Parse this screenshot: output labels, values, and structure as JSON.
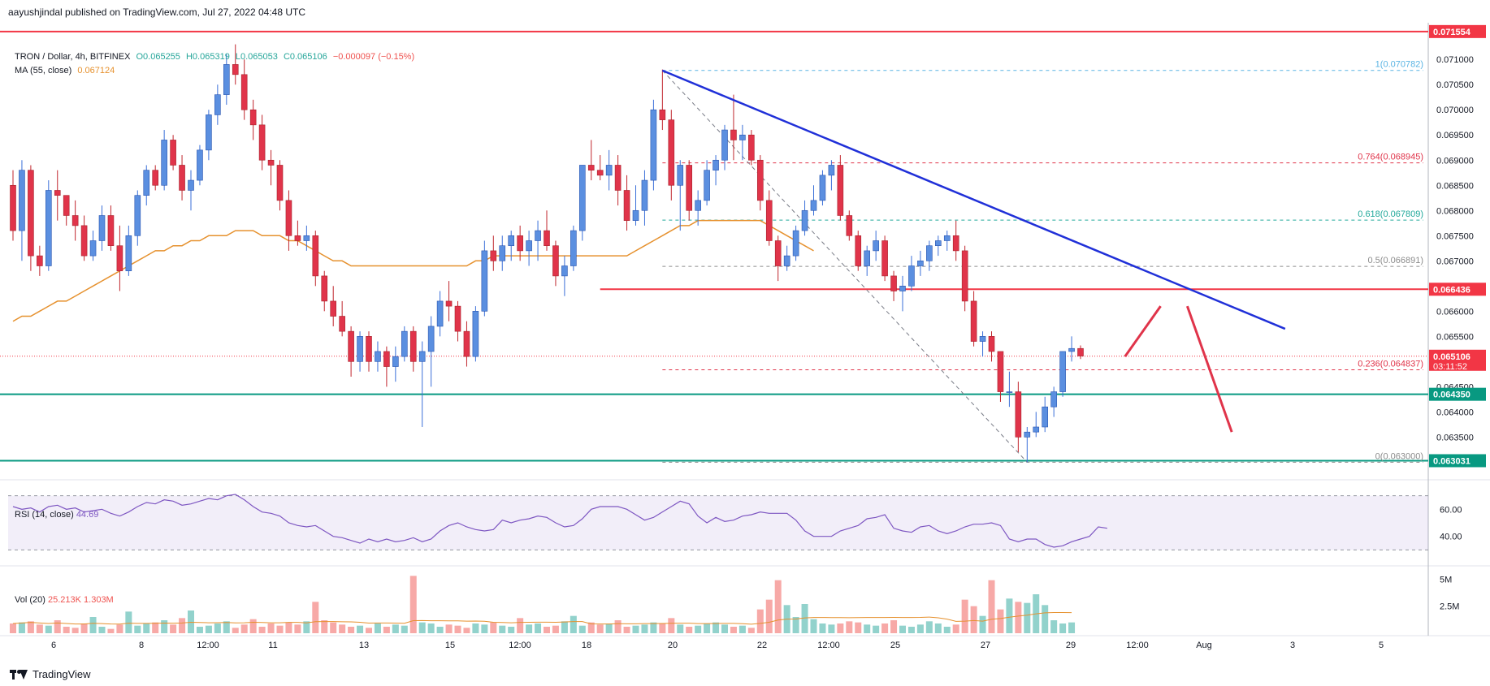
{
  "publisher": "aayushjindal published on TradingView.com, Jul 27, 2022 04:48 UTC",
  "footer_brand": "TradingView",
  "legend": {
    "symbol": "TRON / Dollar, 4h, BITFINEX",
    "o": "O0.065255",
    "h": "H0.065319",
    "l": "L0.065053",
    "c": "C0.065106",
    "change": "−0.000097 (−0.15%)",
    "ma_label": "MA (55, close)",
    "ma_value": "0.067124",
    "rsi_label": "RSI (14, close)",
    "rsi_value": "44.69",
    "vol_label": "Vol (20)",
    "vol_value": "25.213K",
    "vol_ma_value": "1.303M"
  },
  "chart_data": {
    "type": "candlestick",
    "title": "TRON / Dollar, 4h, BITFINEX",
    "currency": "USD",
    "ylim": [
      0.0627,
      0.0716
    ],
    "y_ticks": [
      "0.071000",
      "0.070500",
      "0.070000",
      "0.069500",
      "0.069000",
      "0.068500",
      "0.068000",
      "0.067500",
      "0.067000",
      "0.066500",
      "0.066000",
      "0.065500",
      "0.065000",
      "0.064500",
      "0.064000",
      "0.063500"
    ],
    "x_ticks": [
      "6",
      "8",
      "12:00",
      "11",
      "13",
      "15",
      "12:00",
      "18",
      "20",
      "22",
      "12:00",
      "25",
      "27",
      "29",
      "12:00",
      "Aug",
      "3",
      "5"
    ],
    "price_labels": [
      {
        "text": "0.071554",
        "value": 0.071554,
        "color": "#f23645"
      },
      {
        "text": "0.066436",
        "value": 0.066436,
        "color": "#f23645"
      },
      {
        "text": "0.065106",
        "value": 0.065106,
        "color": "#f23645",
        "sub": "03:11:52"
      },
      {
        "text": "0.064350",
        "value": 0.06435,
        "color": "#089981"
      },
      {
        "text": "0.063031",
        "value": 0.063031,
        "color": "#089981"
      }
    ],
    "horizontal_lines": [
      {
        "value": 0.071554,
        "color": "#f23645",
        "style": "solid"
      },
      {
        "value": 0.066436,
        "color": "#f23645",
        "style": "solid",
        "from_candle": 66
      },
      {
        "value": 0.06435,
        "color": "#089981",
        "style": "solid"
      },
      {
        "value": 0.063031,
        "color": "#089981",
        "style": "solid"
      },
      {
        "value": 0.065106,
        "color": "#f23645",
        "style": "dotted"
      }
    ],
    "fibonacci": [
      {
        "label": "1(0.070782)",
        "value": 0.070782,
        "color": "#5ab4e3"
      },
      {
        "label": "0.764(0.068945)",
        "value": 0.068945,
        "color": "#e0344a"
      },
      {
        "label": "0.618(0.067809)",
        "value": 0.067809,
        "color": "#22a99b"
      },
      {
        "label": "0.5(0.066891)",
        "value": 0.066891,
        "color": "#8c8c8c"
      },
      {
        "label": "0.236(0.064837)",
        "value": 0.064837,
        "color": "#e0344a"
      },
      {
        "label": "0(0.063000)",
        "value": 0.063,
        "color": "#8c8c8c"
      }
    ],
    "trendline": {
      "from": [
        73,
        0.07078
      ],
      "to": [
        143,
        0.06565
      ],
      "color": "#2030d8"
    },
    "projection": {
      "points": [
        [
          125,
          0.0651
        ],
        [
          129,
          0.0661
        ],
        [
          132,
          0.0661
        ],
        [
          137,
          0.0636
        ]
      ],
      "color": "#e0344a"
    },
    "candles": [
      [
        0.0685,
        0.0688,
        0.0674,
        0.0676
      ],
      [
        0.0676,
        0.069,
        0.067,
        0.0688
      ],
      [
        0.0688,
        0.0689,
        0.0668,
        0.0671
      ],
      [
        0.0671,
        0.0673,
        0.0667,
        0.0669
      ],
      [
        0.0669,
        0.0686,
        0.0668,
        0.0684
      ],
      [
        0.0684,
        0.0688,
        0.0678,
        0.0683
      ],
      [
        0.0683,
        0.0683,
        0.0677,
        0.0679
      ],
      [
        0.0679,
        0.0682,
        0.0674,
        0.0677
      ],
      [
        0.0677,
        0.0679,
        0.067,
        0.0671
      ],
      [
        0.0671,
        0.0676,
        0.067,
        0.0674
      ],
      [
        0.0674,
        0.0681,
        0.0672,
        0.0679
      ],
      [
        0.0679,
        0.0681,
        0.0672,
        0.0673
      ],
      [
        0.0673,
        0.0677,
        0.0664,
        0.0668
      ],
      [
        0.0668,
        0.0677,
        0.0667,
        0.0675
      ],
      [
        0.0675,
        0.0684,
        0.0673,
        0.0683
      ],
      [
        0.0683,
        0.0689,
        0.0681,
        0.0688
      ],
      [
        0.0688,
        0.0689,
        0.0684,
        0.0685
      ],
      [
        0.0685,
        0.0696,
        0.0684,
        0.0694
      ],
      [
        0.0694,
        0.0695,
        0.0688,
        0.0689
      ],
      [
        0.0689,
        0.0691,
        0.0682,
        0.0684
      ],
      [
        0.0684,
        0.0688,
        0.068,
        0.0686
      ],
      [
        0.0686,
        0.0693,
        0.0685,
        0.0692
      ],
      [
        0.0692,
        0.07,
        0.069,
        0.0699
      ],
      [
        0.0699,
        0.0705,
        0.0697,
        0.0703
      ],
      [
        0.0703,
        0.0711,
        0.0701,
        0.0709
      ],
      [
        0.0709,
        0.0713,
        0.0705,
        0.0707
      ],
      [
        0.0707,
        0.071,
        0.0698,
        0.07
      ],
      [
        0.07,
        0.0702,
        0.0694,
        0.0697
      ],
      [
        0.0697,
        0.0699,
        0.0688,
        0.069
      ],
      [
        0.069,
        0.0692,
        0.0685,
        0.0689
      ],
      [
        0.0689,
        0.069,
        0.068,
        0.0682
      ],
      [
        0.0682,
        0.0684,
        0.0672,
        0.0675
      ],
      [
        0.0675,
        0.0678,
        0.0673,
        0.0674
      ],
      [
        0.0674,
        0.0677,
        0.0672,
        0.0675
      ],
      [
        0.0675,
        0.0676,
        0.0665,
        0.0667
      ],
      [
        0.0667,
        0.0668,
        0.066,
        0.0662
      ],
      [
        0.0662,
        0.0665,
        0.0657,
        0.0659
      ],
      [
        0.0659,
        0.0662,
        0.0655,
        0.0656
      ],
      [
        0.0656,
        0.0657,
        0.0647,
        0.065
      ],
      [
        0.065,
        0.0656,
        0.0648,
        0.0655
      ],
      [
        0.0655,
        0.0656,
        0.0648,
        0.065
      ],
      [
        0.065,
        0.0654,
        0.0648,
        0.0652
      ],
      [
        0.0652,
        0.0653,
        0.0645,
        0.0649
      ],
      [
        0.0649,
        0.0653,
        0.0646,
        0.0651
      ],
      [
        0.0651,
        0.0657,
        0.065,
        0.0656
      ],
      [
        0.0656,
        0.0657,
        0.0648,
        0.065
      ],
      [
        0.065,
        0.0654,
        0.0637,
        0.0652
      ],
      [
        0.0652,
        0.0659,
        0.0645,
        0.0657
      ],
      [
        0.0657,
        0.0664,
        0.0655,
        0.0662
      ],
      [
        0.0662,
        0.0666,
        0.0658,
        0.0661
      ],
      [
        0.0661,
        0.0662,
        0.0654,
        0.0656
      ],
      [
        0.0656,
        0.0658,
        0.0649,
        0.0651
      ],
      [
        0.0651,
        0.0661,
        0.065,
        0.066
      ],
      [
        0.066,
        0.0674,
        0.0659,
        0.0672
      ],
      [
        0.0672,
        0.0675,
        0.0668,
        0.067
      ],
      [
        0.067,
        0.0675,
        0.0668,
        0.0673
      ],
      [
        0.0673,
        0.0676,
        0.067,
        0.0675
      ],
      [
        0.0675,
        0.0677,
        0.067,
        0.0672
      ],
      [
        0.0672,
        0.0676,
        0.0669,
        0.0674
      ],
      [
        0.0674,
        0.0678,
        0.067,
        0.0676
      ],
      [
        0.0676,
        0.068,
        0.0672,
        0.0673
      ],
      [
        0.0673,
        0.0674,
        0.0665,
        0.0667
      ],
      [
        0.0667,
        0.0671,
        0.0663,
        0.0669
      ],
      [
        0.0669,
        0.0677,
        0.0668,
        0.0676
      ],
      [
        0.0676,
        0.0689,
        0.0674,
        0.0689
      ],
      [
        0.0689,
        0.0694,
        0.0686,
        0.0688
      ],
      [
        0.0688,
        0.0691,
        0.0686,
        0.0687
      ],
      [
        0.0687,
        0.0692,
        0.0684,
        0.0689
      ],
      [
        0.0689,
        0.0691,
        0.0681,
        0.0684
      ],
      [
        0.0684,
        0.0687,
        0.0676,
        0.0678
      ],
      [
        0.0678,
        0.0685,
        0.0677,
        0.068
      ],
      [
        0.068,
        0.0688,
        0.0677,
        0.0686
      ],
      [
        0.0686,
        0.0702,
        0.0684,
        0.07
      ],
      [
        0.07,
        0.0708,
        0.0696,
        0.0698
      ],
      [
        0.0698,
        0.07,
        0.0682,
        0.0685
      ],
      [
        0.0685,
        0.069,
        0.0676,
        0.0689
      ],
      [
        0.0689,
        0.069,
        0.0678,
        0.068
      ],
      [
        0.068,
        0.0684,
        0.0677,
        0.0682
      ],
      [
        0.0682,
        0.069,
        0.0681,
        0.0688
      ],
      [
        0.0688,
        0.0691,
        0.0685,
        0.069
      ],
      [
        0.069,
        0.0697,
        0.0688,
        0.0696
      ],
      [
        0.0696,
        0.0703,
        0.069,
        0.0694
      ],
      [
        0.0694,
        0.0697,
        0.069,
        0.0695
      ],
      [
        0.0695,
        0.0696,
        0.0689,
        0.069
      ],
      [
        0.069,
        0.0691,
        0.068,
        0.0682
      ],
      [
        0.0682,
        0.0684,
        0.0673,
        0.0674
      ],
      [
        0.0674,
        0.0675,
        0.0666,
        0.0669
      ],
      [
        0.0669,
        0.0673,
        0.0668,
        0.0671
      ],
      [
        0.0671,
        0.0677,
        0.067,
        0.0676
      ],
      [
        0.0676,
        0.0682,
        0.0675,
        0.068
      ],
      [
        0.068,
        0.0685,
        0.0679,
        0.0682
      ],
      [
        0.0682,
        0.0688,
        0.0681,
        0.0687
      ],
      [
        0.0687,
        0.069,
        0.0684,
        0.0689
      ],
      [
        0.0689,
        0.0691,
        0.0678,
        0.0679
      ],
      [
        0.0679,
        0.068,
        0.0674,
        0.0675
      ],
      [
        0.0675,
        0.0676,
        0.0668,
        0.0669
      ],
      [
        0.0669,
        0.0673,
        0.0667,
        0.0672
      ],
      [
        0.0672,
        0.0676,
        0.067,
        0.0674
      ],
      [
        0.0674,
        0.0675,
        0.0666,
        0.0667
      ],
      [
        0.0667,
        0.0668,
        0.0662,
        0.0664
      ],
      [
        0.0664,
        0.0667,
        0.066,
        0.0665
      ],
      [
        0.0665,
        0.0671,
        0.0664,
        0.0669
      ],
      [
        0.0669,
        0.0672,
        0.0667,
        0.067
      ],
      [
        0.067,
        0.0674,
        0.0668,
        0.0673
      ],
      [
        0.0673,
        0.0675,
        0.0671,
        0.0674
      ],
      [
        0.0674,
        0.0676,
        0.0672,
        0.0675
      ],
      [
        0.0675,
        0.0678,
        0.067,
        0.0672
      ],
      [
        0.0672,
        0.0673,
        0.066,
        0.0662
      ],
      [
        0.0662,
        0.0664,
        0.0653,
        0.0654
      ],
      [
        0.0654,
        0.0656,
        0.0651,
        0.0655
      ],
      [
        0.0655,
        0.0656,
        0.065,
        0.0652
      ],
      [
        0.0652,
        0.0652,
        0.0642,
        0.0644
      ],
      [
        0.0644,
        0.0648,
        0.0641,
        0.0644
      ],
      [
        0.0644,
        0.0646,
        0.0632,
        0.0635
      ],
      [
        0.0635,
        0.0637,
        0.063,
        0.0636
      ],
      [
        0.0636,
        0.064,
        0.0635,
        0.0637
      ],
      [
        0.0637,
        0.0643,
        0.0636,
        0.0641
      ],
      [
        0.0641,
        0.0645,
        0.0639,
        0.0644
      ],
      [
        0.0644,
        0.0652,
        0.0643,
        0.0652
      ],
      [
        0.0652,
        0.0655,
        0.065,
        0.06526
      ],
      [
        0.06526,
        0.06532,
        0.06505,
        0.06511
      ]
    ],
    "ma55": [
      0.0658,
      0.0659,
      0.0659,
      0.066,
      0.0661,
      0.0662,
      0.0662,
      0.0663,
      0.0664,
      0.0665,
      0.0666,
      0.0667,
      0.0668,
      0.0669,
      0.067,
      0.0671,
      0.0672,
      0.0672,
      0.0673,
      0.0673,
      0.0674,
      0.0674,
      0.0675,
      0.0675,
      0.0675,
      0.0676,
      0.0676,
      0.0676,
      0.0675,
      0.0675,
      0.0675,
      0.0674,
      0.0674,
      0.0673,
      0.0672,
      0.0671,
      0.067,
      0.067,
      0.0669,
      0.0669,
      0.0669,
      0.0669,
      0.0669,
      0.0669,
      0.0669,
      0.0669,
      0.0669,
      0.0669,
      0.0669,
      0.0669,
      0.0669,
      0.0669,
      0.067,
      0.067,
      0.0671,
      0.0671,
      0.0671,
      0.0671,
      0.0671,
      0.0671,
      0.0671,
      0.0671,
      0.0671,
      0.0671,
      0.0671,
      0.0671,
      0.0671,
      0.0671,
      0.0671,
      0.0671,
      0.0672,
      0.0673,
      0.0674,
      0.0675,
      0.0676,
      0.0677,
      0.0677,
      0.0678,
      0.0678,
      0.0678,
      0.0678,
      0.0678,
      0.0678,
      0.0678,
      0.0678,
      0.0677,
      0.0676,
      0.0675,
      0.0674,
      0.0673,
      0.0672
    ],
    "rsi": [
      62,
      60,
      61,
      58,
      62,
      63,
      60,
      61,
      58,
      59,
      60,
      57,
      55,
      58,
      62,
      65,
      64,
      67,
      66,
      63,
      64,
      66,
      68,
      67,
      70,
      71,
      67,
      62,
      58,
      57,
      55,
      50,
      48,
      47,
      48,
      44,
      40,
      39,
      37,
      35,
      38,
      36,
      38,
      36,
      37,
      39,
      36,
      38,
      44,
      48,
      50,
      47,
      45,
      44,
      45,
      52,
      50,
      52,
      53,
      55,
      54,
      50,
      47,
      48,
      53,
      60,
      62,
      62,
      62,
      60,
      56,
      52,
      54,
      58,
      62,
      66,
      64,
      55,
      50,
      54,
      51,
      52,
      55,
      56,
      58,
      57,
      57,
      57,
      52,
      44,
      40,
      40,
      40,
      44,
      46,
      48,
      53,
      54,
      56,
      46,
      44,
      43,
      47,
      48,
      44,
      42,
      44,
      47,
      49,
      49,
      50,
      48,
      38,
      36,
      38,
      38,
      34,
      32,
      33,
      36,
      38,
      40,
      47,
      46
    ],
    "rsi_bands": [
      30,
      70
    ],
    "volume": [
      0.9,
      1.0,
      1.1,
      0.8,
      0.7,
      1.2,
      0.6,
      0.5,
      0.9,
      1.5,
      0.6,
      0.4,
      0.8,
      2.0,
      0.7,
      0.9,
      1.0,
      1.2,
      0.8,
      1.4,
      2.1,
      0.6,
      0.7,
      0.9,
      1.1,
      0.5,
      0.8,
      1.3,
      0.6,
      0.9,
      0.7,
      1.0,
      0.8,
      1.1,
      2.9,
      1.2,
      1.0,
      0.8,
      0.6,
      0.7,
      0.5,
      0.9,
      0.6,
      0.8,
      0.7,
      5.3,
      1.0,
      0.9,
      0.6,
      0.8,
      0.7,
      0.5,
      0.9,
      0.8,
      1.0,
      0.7,
      0.6,
      1.4,
      0.8,
      0.9,
      0.6,
      0.7,
      1.1,
      1.6,
      0.7,
      1.0,
      0.8,
      0.9,
      1.2,
      0.6,
      0.7,
      0.8,
      1.0,
      0.9,
      1.4,
      0.8,
      0.6,
      0.7,
      0.9,
      1.0,
      0.8,
      0.6,
      0.7,
      0.5,
      2.2,
      3.1,
      4.9,
      2.6,
      1.5,
      2.7,
      1.3,
      0.9,
      0.8,
      0.9,
      1.1,
      1.0,
      0.8,
      0.7,
      0.9,
      1.2,
      0.7,
      0.6,
      0.8,
      1.1,
      0.9,
      0.6,
      0.8,
      3.1,
      2.5,
      1.6,
      4.9,
      2.2,
      3.2,
      2.9,
      2.8,
      3.6,
      2.6,
      1.2,
      0.9,
      1.0
    ],
    "volume_ticks": [
      "5M",
      "2.5M"
    ],
    "rsi_ticks": [
      "60.00",
      "40.00"
    ]
  }
}
